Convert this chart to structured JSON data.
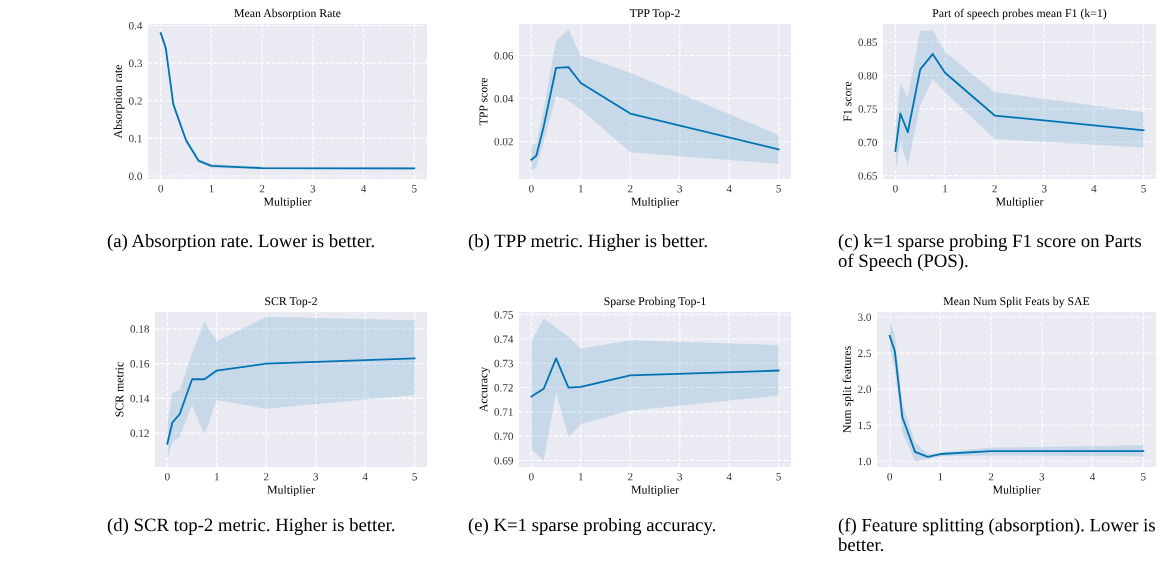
{
  "chart_data": [
    {
      "type": "line",
      "title": "Mean Absorption Rate",
      "xlabel": "Multiplier",
      "ylabel": "Absorption rate",
      "x": [
        0,
        0.1,
        0.25,
        0.5,
        0.75,
        1,
        2,
        5
      ],
      "xlim": [
        -0.25,
        5.25
      ],
      "xticks": [
        0,
        1,
        2,
        3,
        4,
        5
      ],
      "ylim": [
        -0.008,
        0.404
      ],
      "yticks": [
        {
          "value": 0,
          "label": "0.0"
        },
        0.1,
        0.2,
        0.3,
        0.4
      ],
      "grid": true,
      "series": [
        {
          "color": "#0173b2",
          "values": [
            0.38,
            0.34,
            0.19,
            0.095,
            0.04,
            0.027,
            0.021,
            0.02
          ],
          "lower": [
            0.37,
            0.33,
            0.18,
            0.088,
            0.036,
            0.022,
            0.017,
            0.016
          ],
          "upper": [
            0.39,
            0.35,
            0.2,
            0.102,
            0.045,
            0.032,
            0.025,
            0.024
          ]
        }
      ],
      "annotations": [
        "(a) Absorption rate. Lower is better."
      ]
    },
    {
      "type": "line",
      "title": "TPP Top-2",
      "xlabel": "Multiplier",
      "ylabel": "TPP score",
      "x": [
        0,
        0.1,
        0.25,
        0.5,
        0.75,
        1,
        2,
        5
      ],
      "xlim": [
        -0.25,
        5.25
      ],
      "xticks": [
        0,
        1,
        2,
        3,
        4,
        5
      ],
      "ylim": [
        0.0025,
        0.0747
      ],
      "yticks": [
        0.02,
        0.04,
        0.06
      ],
      "grid": true,
      "series": [
        {
          "color": "#0173b2",
          "values": [
            0.0115,
            0.0133,
            0.027,
            0.0543,
            0.0546,
            0.0472,
            0.033,
            0.0163
          ],
          "lower": [
            0.006,
            0.008,
            0.02,
            0.041,
            0.039,
            0.035,
            0.015,
            0.0095
          ],
          "upper": [
            0.018,
            0.019,
            0.035,
            0.067,
            0.072,
            0.06,
            0.052,
            0.023
          ]
        }
      ],
      "annotations": [
        "(b) TPP metric. Higher is better."
      ]
    },
    {
      "type": "line",
      "title": "Part of speech probes mean F1 (k=1)",
      "xlabel": "Multiplier",
      "ylabel": "F1 score",
      "x": [
        0,
        0.1,
        0.25,
        0.5,
        0.75,
        1,
        2,
        5
      ],
      "xlim": [
        -0.25,
        5.25
      ],
      "xticks": [
        0,
        1,
        2,
        3,
        4,
        5
      ],
      "ylim": [
        0.645,
        0.877
      ],
      "yticks": [
        0.65,
        {
          "value": 0.7,
          "label": "0.70"
        },
        0.75,
        {
          "value": 0.8,
          "label": "0.80"
        },
        0.85
      ],
      "grid": true,
      "series": [
        {
          "color": "#0173b2",
          "values": [
            0.687,
            0.743,
            0.715,
            0.809,
            0.832,
            0.804,
            0.74,
            0.718
          ],
          "lower": [
            0.655,
            0.7,
            0.665,
            0.755,
            0.795,
            0.775,
            0.705,
            0.692
          ],
          "upper": [
            0.72,
            0.788,
            0.767,
            0.866,
            0.868,
            0.835,
            0.775,
            0.745
          ]
        }
      ],
      "annotations": [
        "(c) k=1 sparse probing F1 score on Parts of Speech (POS)."
      ]
    },
    {
      "type": "line",
      "title": "SCR Top-2",
      "xlabel": "Multiplier",
      "ylabel": "SCR metric",
      "x": [
        0,
        0.1,
        0.25,
        0.5,
        0.75,
        1,
        2,
        5
      ],
      "xlim": [
        -0.25,
        5.25
      ],
      "xticks": [
        0,
        1,
        2,
        3,
        4,
        5
      ],
      "ylim": [
        0.1005,
        0.1897
      ],
      "yticks": [
        0.12,
        0.14,
        0.16,
        0.18
      ],
      "grid": true,
      "series": [
        {
          "color": "#0173b2",
          "values": [
            0.114,
            0.126,
            0.131,
            0.151,
            0.151,
            0.156,
            0.16,
            0.163
          ],
          "lower": [
            0.105,
            0.115,
            0.118,
            0.136,
            0.119,
            0.139,
            0.134,
            0.142
          ],
          "upper": [
            0.125,
            0.143,
            0.145,
            0.166,
            0.184,
            0.173,
            0.187,
            0.185
          ]
        }
      ],
      "annotations": [
        "(d) SCR top-2 metric. Higher is better."
      ]
    },
    {
      "type": "line",
      "title": "Sparse Probing Top-1",
      "xlabel": "Multiplier",
      "ylabel": "Accuracy",
      "x": [
        0,
        0.25,
        0.5,
        0.75,
        1,
        2,
        5
      ],
      "xlim": [
        -0.25,
        5.25
      ],
      "xticks": [
        0,
        1,
        2,
        3,
        4,
        5
      ],
      "ylim": [
        0.6873,
        0.7511
      ],
      "yticks": [
        0.69,
        {
          "value": 0.7,
          "label": "0.70"
        },
        0.71,
        0.72,
        0.73,
        0.74,
        0.75
      ],
      "grid": true,
      "series": [
        {
          "color": "#0173b2",
          "values": [
            0.7163,
            0.7195,
            0.732,
            0.72,
            0.7203,
            0.725,
            0.727
          ],
          "lower": [
            0.6945,
            0.69,
            0.718,
            0.6995,
            0.705,
            0.7105,
            0.7167
          ],
          "upper": [
            0.739,
            0.7485,
            0.7445,
            0.741,
            0.736,
            0.7395,
            0.7375
          ]
        }
      ],
      "annotations": [
        "(e) K=1 sparse probing accuracy."
      ]
    },
    {
      "type": "line",
      "title": "Mean Num Split Feats by SAE",
      "xlabel": "Multiplier",
      "ylabel": "Num split features",
      "x": [
        0,
        0.1,
        0.25,
        0.5,
        0.75,
        1,
        2,
        5
      ],
      "xlim": [
        -0.25,
        5.25
      ],
      "xticks": [
        0,
        1,
        2,
        3,
        4,
        5
      ],
      "ylim": [
        0.92,
        3.07
      ],
      "yticks": [
        {
          "value": 1,
          "label": "1.0"
        },
        1.5,
        {
          "value": 2,
          "label": "2.0"
        },
        2.5,
        {
          "value": 3,
          "label": "3.0"
        }
      ],
      "grid": true,
      "series": [
        {
          "color": "#0173b2",
          "values": [
            2.74,
            2.53,
            1.61,
            1.13,
            1.06,
            1.1,
            1.14,
            1.14
          ],
          "lower": [
            2.55,
            2.3,
            1.4,
            1.0,
            1.03,
            1.07,
            1.08,
            1.07
          ],
          "upper": [
            2.95,
            2.75,
            1.8,
            1.26,
            1.1,
            1.12,
            1.19,
            1.22
          ]
        }
      ],
      "annotations": [
        "(f) Feature splitting (absorption). Lower is better."
      ]
    }
  ]
}
